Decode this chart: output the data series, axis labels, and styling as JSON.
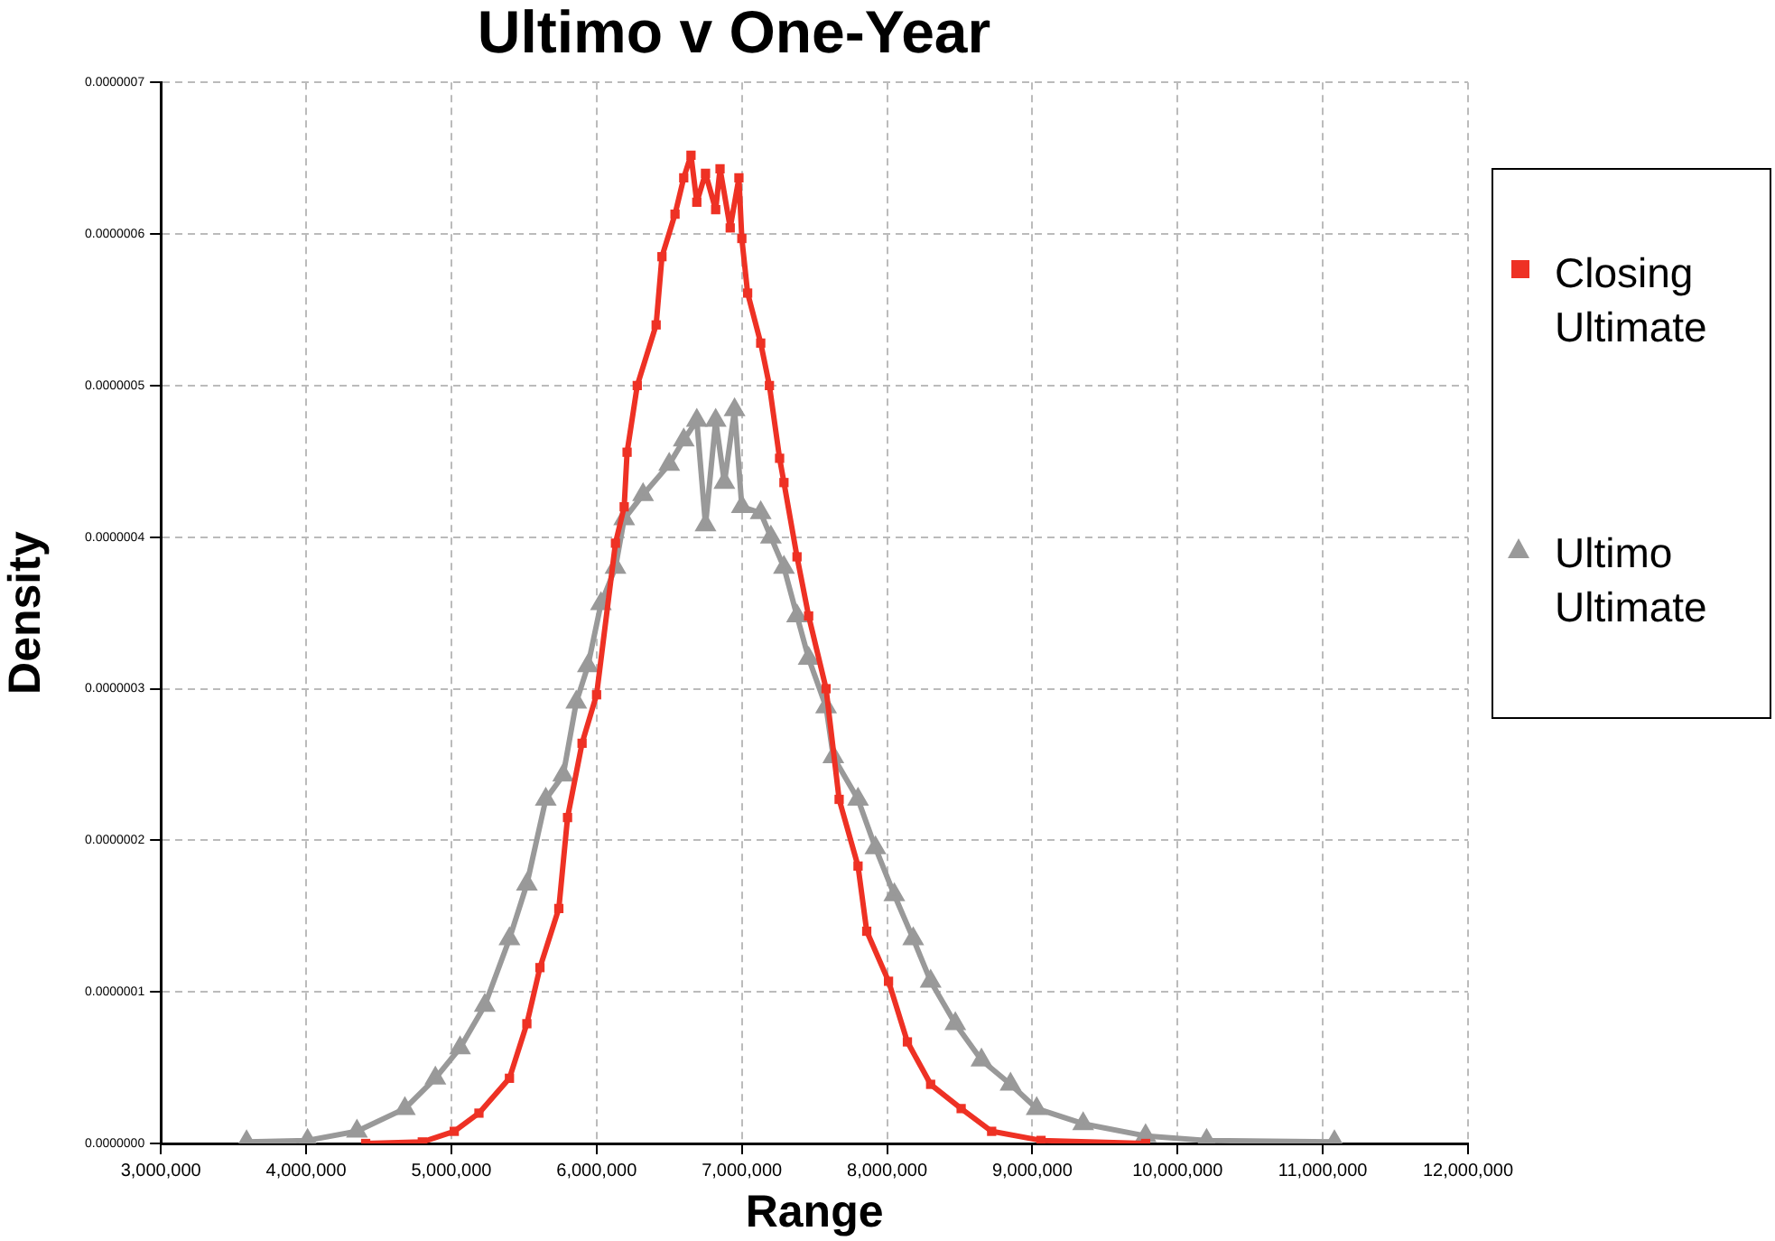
{
  "chart_data": {
    "type": "line",
    "title": "Ultimo v One-Year",
    "xlabel": "Range",
    "ylabel": "Density",
    "xlim": [
      3000000,
      12000000
    ],
    "xticks": [
      {
        "value": 3000000,
        "label": "3,000,000"
      },
      {
        "value": 4000000,
        "label": "4,000,000"
      },
      {
        "value": 5000000,
        "label": "5,000,000"
      },
      {
        "value": 6000000,
        "label": "6,000,000"
      },
      {
        "value": 7000000,
        "label": "7,000,000"
      },
      {
        "value": 8000000,
        "label": "8,000,000"
      },
      {
        "value": 9000000,
        "label": "9,000,000"
      },
      {
        "value": 10000000,
        "label": "10,000,000"
      },
      {
        "value": 11000000,
        "label": "11,000,000"
      },
      {
        "value": 12000000,
        "label": "12,000,000"
      }
    ],
    "ylim": [
      0,
      7e-07
    ],
    "yticks": [
      {
        "value": 0,
        "label": "0.0000000"
      },
      {
        "value": 1e-07,
        "label": "0.0000001"
      },
      {
        "value": 2e-07,
        "label": "0.0000002"
      },
      {
        "value": 3e-07,
        "label": "0.0000003"
      },
      {
        "value": 4e-07,
        "label": "0.0000004"
      },
      {
        "value": 5e-07,
        "label": "0.0000005"
      },
      {
        "value": 6e-07,
        "label": "0.0000006"
      },
      {
        "value": 7e-07,
        "label": "0.0000007"
      }
    ],
    "grid": true,
    "legend": "right",
    "line_style": "solid",
    "series": [
      {
        "name": "Closing Ultimate",
        "color": "#ee3124",
        "marker": "square",
        "x": [
          4410000,
          4800000,
          5020000,
          5190000,
          5400000,
          5520000,
          5610000,
          5740000,
          5800000,
          5900000,
          6000000,
          6130000,
          6190000,
          6210000,
          6280000,
          6410000,
          6450000,
          6540000,
          6600000,
          6650000,
          6690000,
          6750000,
          6820000,
          6850000,
          6920000,
          6980000,
          7000000,
          7040000,
          7130000,
          7190000,
          7260000,
          7290000,
          7380000,
          7460000,
          7580000,
          7670000,
          7800000,
          7860000,
          8010000,
          8140000,
          8300000,
          8510000,
          8720000,
          9060000,
          9780000
        ],
        "values": [
          0,
          1e-09,
          8e-09,
          2e-08,
          4.3e-08,
          7.9e-08,
          1.16e-07,
          1.55e-07,
          2.15e-07,
          2.64e-07,
          2.96e-07,
          3.96e-07,
          4.2e-07,
          4.56e-07,
          5e-07,
          5.4e-07,
          5.85e-07,
          6.13e-07,
          6.37e-07,
          6.52e-07,
          6.21e-07,
          6.4e-07,
          6.16e-07,
          6.43e-07,
          6.04e-07,
          6.37e-07,
          5.97e-07,
          5.61e-07,
          5.28e-07,
          5e-07,
          4.52e-07,
          4.36e-07,
          3.87e-07,
          3.48e-07,
          3e-07,
          2.27e-07,
          1.83e-07,
          1.4e-07,
          1.07e-07,
          6.7e-08,
          3.9e-08,
          2.3e-08,
          8e-09,
          2e-09,
          0
        ]
      },
      {
        "name": "Ultimo Ultimate",
        "color": "#999999",
        "marker": "triangle",
        "x": [
          3590000,
          4010000,
          4350000,
          4680000,
          4890000,
          5060000,
          5230000,
          5400000,
          5520000,
          5650000,
          5770000,
          5860000,
          5940000,
          6030000,
          6130000,
          6190000,
          6320000,
          6500000,
          6600000,
          6690000,
          6750000,
          6820000,
          6880000,
          6950000,
          7000000,
          7130000,
          7200000,
          7290000,
          7380000,
          7460000,
          7580000,
          7630000,
          7800000,
          7920000,
          8050000,
          8180000,
          8300000,
          8470000,
          8650000,
          8850000,
          9030000,
          9350000,
          9780000,
          10200000,
          11080000
        ],
        "values": [
          1e-09,
          2e-09,
          8e-09,
          2.3e-08,
          4.3e-08,
          6.3e-08,
          9.1e-08,
          1.35e-07,
          1.71e-07,
          2.27e-07,
          2.43e-07,
          2.91e-07,
          3.15e-07,
          3.56e-07,
          3.8e-07,
          4.12e-07,
          4.28e-07,
          4.48e-07,
          4.64e-07,
          4.77e-07,
          4.08e-07,
          4.77e-07,
          4.36e-07,
          4.84e-07,
          4.2e-07,
          4.16e-07,
          4e-07,
          3.8e-07,
          3.48e-07,
          3.2e-07,
          2.88e-07,
          2.55e-07,
          2.27e-07,
          1.95e-07,
          1.64e-07,
          1.35e-07,
          1.07e-07,
          7.9e-08,
          5.5e-08,
          3.9e-08,
          2.3e-08,
          1.3e-08,
          5e-09,
          2e-09,
          1e-09
        ]
      }
    ]
  }
}
